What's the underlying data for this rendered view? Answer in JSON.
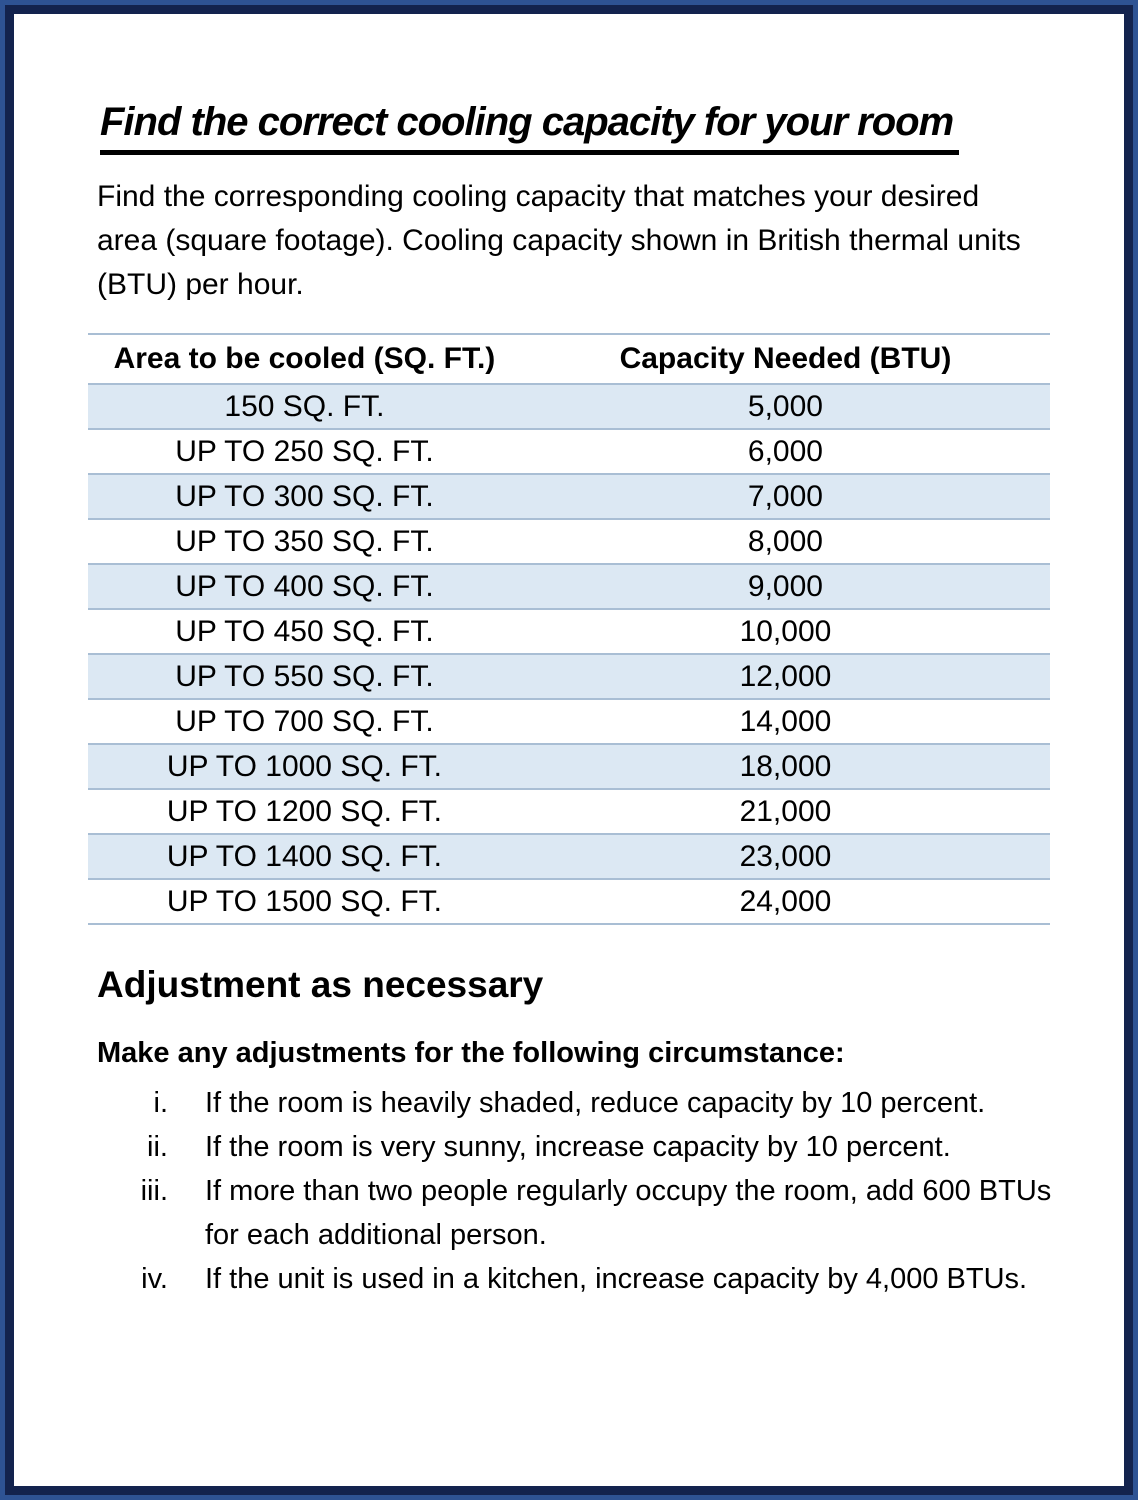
{
  "title": "Find the correct cooling capacity for your room",
  "intro": "Find the corresponding cooling capacity that matches your desired area (square footage). Cooling capacity shown in British thermal units (BTU) per hour.",
  "table": {
    "headers": [
      "Area to be cooled (SQ. FT.)",
      "Capacity Needed (BTU)"
    ],
    "rows": [
      [
        "150 SQ. FT.",
        "5,000"
      ],
      [
        "UP TO 250 SQ. FT.",
        "6,000"
      ],
      [
        "UP TO 300 SQ. FT.",
        "7,000"
      ],
      [
        "UP TO 350 SQ. FT.",
        "8,000"
      ],
      [
        "UP TO 400 SQ. FT.",
        "9,000"
      ],
      [
        "UP TO 450 SQ. FT.",
        "10,000"
      ],
      [
        "UP TO 550 SQ. FT.",
        "12,000"
      ],
      [
        "UP TO 700 SQ. FT.",
        "14,000"
      ],
      [
        "UP TO 1000 SQ. FT.",
        "18,000"
      ],
      [
        "UP TO 1200 SQ. FT.",
        "21,000"
      ],
      [
        "UP TO 1400 SQ. FT.",
        "23,000"
      ],
      [
        "UP TO 1500 SQ. FT.",
        "24,000"
      ]
    ]
  },
  "adjustment": {
    "heading": "Adjustment as necessary",
    "lead": "Make any adjustments for the following circumstance:",
    "items": [
      {
        "numeral": "i.",
        "text": "If the room is heavily shaded, reduce capacity by 10 percent."
      },
      {
        "numeral": "ii.",
        "text": "If the room is very sunny, increase capacity by 10 percent."
      },
      {
        "numeral": "iii.",
        "text": "If more than two people regularly occupy the room, add 600 BTUs for each additional person."
      },
      {
        "numeral": "iv.",
        "text": "If the unit is used in a kitchen, increase capacity by 4,000 BTUs."
      }
    ]
  },
  "colors": {
    "frame_outer": "#2e5394",
    "frame_inner": "#13234e",
    "row_shade": "#dce8f3",
    "table_line": "#a9bed4",
    "text": "#000000"
  }
}
